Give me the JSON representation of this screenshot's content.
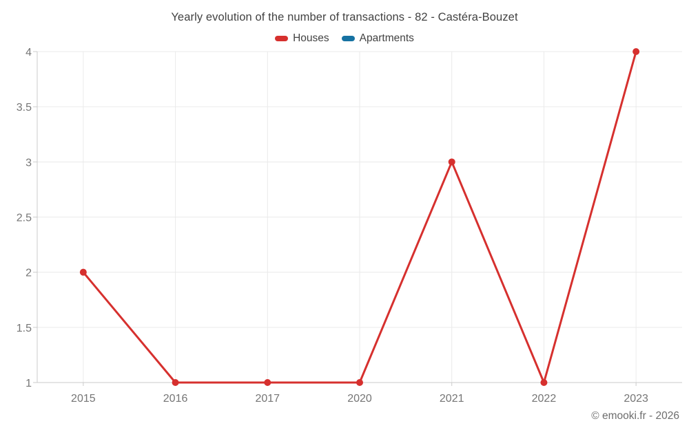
{
  "chart_data": {
    "type": "line",
    "title": "Yearly evolution of the number of transactions - 82 - Castéra-Bouzet",
    "categories": [
      "2015",
      "2016",
      "2017",
      "2020",
      "2021",
      "2022",
      "2023"
    ],
    "series": [
      {
        "name": "Houses",
        "color": "#d6302e",
        "values": [
          2,
          1,
          1,
          1,
          3,
          1,
          4
        ]
      },
      {
        "name": "Apartments",
        "color": "#1672a2",
        "values": []
      }
    ],
    "xlabel": "",
    "ylabel": "",
    "ylim": [
      1,
      4
    ],
    "yticks": [
      1,
      1.5,
      2,
      2.5,
      3,
      3.5,
      4
    ],
    "grid": true,
    "legend_position": "top",
    "marker": "circle",
    "watermark": "© emooki.fr - 2026",
    "colors": {
      "grid": "#eaeaea",
      "axis": "#cbcbcb",
      "tick_label": "#757575",
      "title_text": "#424242",
      "legend_text": "#424242",
      "watermark_text": "#6d6d6d"
    }
  }
}
